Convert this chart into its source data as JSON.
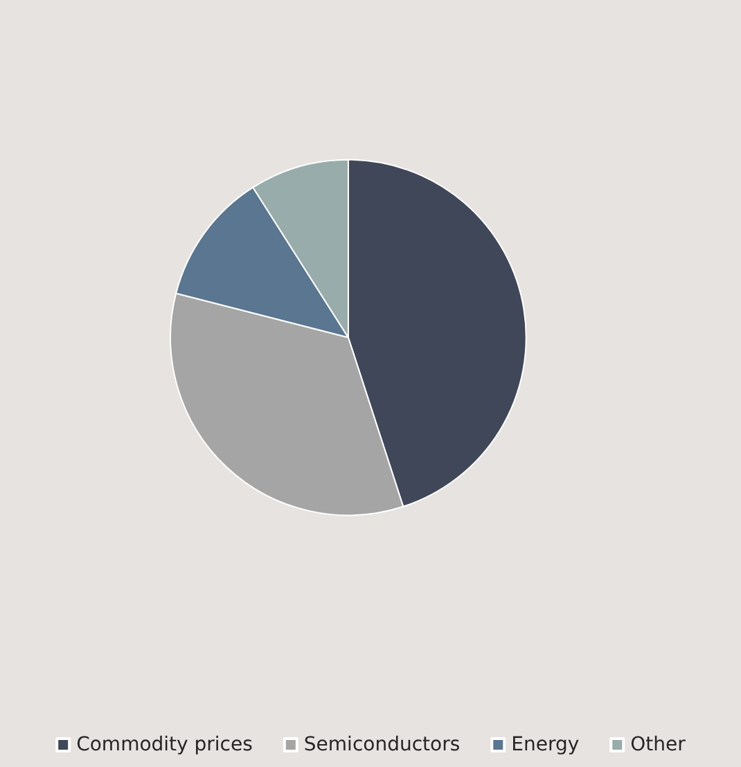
{
  "chart_data": {
    "type": "pie",
    "categories": [
      "Commodity prices",
      "Semiconductors",
      "Energy",
      "Other"
    ],
    "values": [
      45,
      34,
      12,
      9
    ],
    "colors": [
      "#404759",
      "#a5a5a5",
      "#5a7690",
      "#97acab"
    ],
    "legend": "bottom"
  }
}
